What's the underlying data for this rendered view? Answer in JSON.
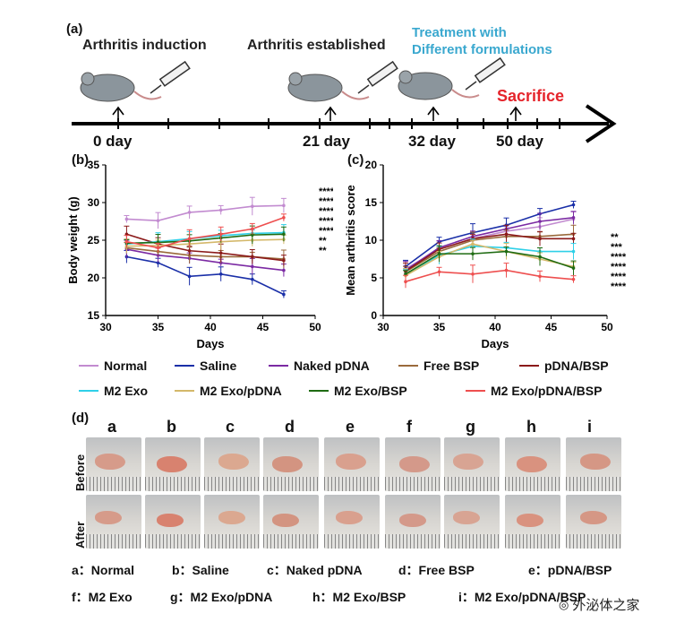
{
  "timeline": {
    "panel_label": "(a)",
    "stages": [
      {
        "label": "Arthritis induction",
        "day": "0 day"
      },
      {
        "label": "Arthritis established",
        "day": "21 day"
      },
      {
        "label_line1": "Treatment with",
        "label_line2": "Different formulations",
        "day": "32 day"
      },
      {
        "label": "Sacrifice",
        "day": "50 day"
      }
    ],
    "colors": {
      "treatment": "#3aa8cf",
      "sacrifice": "#e5242b"
    }
  },
  "legend": [
    {
      "name": "Normal",
      "color": "#c28bd0"
    },
    {
      "name": "Saline",
      "color": "#1a2fa8"
    },
    {
      "name": "Naked pDNA",
      "color": "#7b2aa3"
    },
    {
      "name": "Free BSP",
      "color": "#9a6a3c"
    },
    {
      "name": "pDNA/BSP",
      "color": "#8b1a1a"
    },
    {
      "name": "M2 Exo",
      "color": "#2fd0e8"
    },
    {
      "name": "M2 Exo/pDNA",
      "color": "#d4b86a"
    },
    {
      "name": "M2 Exo/BSP",
      "color": "#1f6b12"
    },
    {
      "name": "M2 Exo/pDNA/BSP",
      "color": "#ee4f4f"
    }
  ],
  "chart_data": [
    {
      "panel_label": "(b)",
      "type": "line",
      "xlabel": "Days",
      "ylabel": "Body weight (g)",
      "xlim": [
        30,
        50
      ],
      "ylim": [
        15,
        35
      ],
      "xticks": [
        "30",
        "35",
        "40",
        "45",
        "50"
      ],
      "yticks": [
        "15",
        "20",
        "25",
        "30",
        "35"
      ],
      "x": [
        32,
        35,
        38,
        41,
        44,
        47
      ],
      "series": [
        {
          "name": "Normal",
          "values": [
            27.8,
            27.6,
            28.7,
            29.0,
            29.5,
            29.6
          ]
        },
        {
          "name": "Saline",
          "values": [
            22.8,
            22.0,
            20.2,
            20.5,
            19.8,
            17.8
          ]
        },
        {
          "name": "Naked pDNA",
          "values": [
            23.8,
            23.0,
            22.6,
            22.0,
            21.5,
            21.0
          ]
        },
        {
          "name": "Free BSP",
          "values": [
            24.0,
            23.5,
            23.0,
            22.8,
            22.8,
            22.5
          ]
        },
        {
          "name": "pDNA/BSP",
          "values": [
            25.8,
            24.5,
            23.6,
            23.3,
            22.8,
            22.3
          ]
        },
        {
          "name": "M2 Exo",
          "values": [
            24.5,
            24.8,
            25.2,
            25.6,
            25.9,
            26.0
          ]
        },
        {
          "name": "M2 Exo/pDNA",
          "values": [
            24.2,
            24.3,
            24.5,
            24.8,
            25.0,
            25.1
          ]
        },
        {
          "name": "M2 Exo/BSP",
          "values": [
            24.6,
            24.7,
            24.9,
            25.3,
            25.7,
            25.8
          ]
        },
        {
          "name": "M2 Exo/pDNA/BSP",
          "values": [
            24.8,
            24.0,
            25.2,
            25.8,
            26.5,
            28.0
          ]
        }
      ],
      "annotations": [
        "****",
        "****",
        "****",
        "****",
        "****",
        "**",
        "**"
      ]
    },
    {
      "panel_label": "(c)",
      "type": "line",
      "xlabel": "Days",
      "ylabel": "Mean arthritis score",
      "xlim": [
        30,
        50
      ],
      "ylim": [
        0,
        20
      ],
      "xticks": [
        "30",
        "35",
        "40",
        "45",
        "50"
      ],
      "yticks": [
        "0",
        "5",
        "10",
        "15",
        "20"
      ],
      "x": [
        32,
        35,
        38,
        41,
        44,
        47
      ],
      "series": [
        {
          "name": "Normal",
          "values": [
            6.2,
            8.8,
            10.2,
            11.2,
            11.8,
            12.8
          ]
        },
        {
          "name": "Saline",
          "values": [
            6.5,
            9.8,
            11.0,
            12.0,
            13.5,
            14.7
          ]
        },
        {
          "name": "Naked pDNA",
          "values": [
            6.0,
            9.0,
            10.5,
            11.5,
            12.5,
            13.0
          ]
        },
        {
          "name": "Free BSP",
          "values": [
            5.8,
            8.5,
            10.0,
            10.5,
            10.5,
            10.8
          ]
        },
        {
          "name": "pDNA/BSP",
          "values": [
            5.9,
            8.8,
            10.2,
            10.8,
            10.2,
            10.2
          ]
        },
        {
          "name": "M2 Exo",
          "values": [
            5.5,
            8.0,
            9.2,
            9.0,
            8.5,
            8.5
          ]
        },
        {
          "name": "M2 Exo/pDNA",
          "values": [
            5.3,
            7.8,
            9.5,
            8.5,
            7.5,
            6.5
          ]
        },
        {
          "name": "M2 Exo/BSP",
          "values": [
            5.5,
            8.2,
            8.2,
            8.5,
            7.8,
            6.3
          ]
        },
        {
          "name": "M2 Exo/pDNA/BSP",
          "values": [
            4.5,
            5.8,
            5.5,
            6.0,
            5.2,
            4.8
          ]
        }
      ],
      "annotations": [
        "**",
        "***",
        "****",
        "****",
        "****",
        "****"
      ]
    }
  ],
  "photos": {
    "panel_label": "(d)",
    "columns": [
      "a",
      "b",
      "c",
      "d",
      "e",
      "f",
      "g",
      "h",
      "i"
    ],
    "rows": [
      "Before",
      "After"
    ]
  },
  "key": [
    [
      "a：Normal",
      "b：Saline",
      "c：Naked pDNA",
      "d：Free BSP",
      "e：pDNA/BSP"
    ],
    [
      "f：M2 Exo",
      "g：M2 Exo/pDNA",
      "h：M2 Exo/BSP",
      "i：M2 Exo/pDNA/BSP"
    ]
  ],
  "watermark": "外泌体之家"
}
